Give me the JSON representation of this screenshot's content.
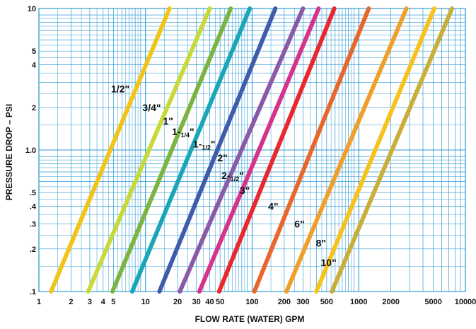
{
  "chart_data": {
    "type": "line",
    "xscale": "log",
    "yscale": "log",
    "xlim": [
      1,
      10000
    ],
    "ylim": [
      0.1,
      10
    ],
    "grid": true,
    "xlabel": "FLOW RATE (WATER) GPM",
    "ylabel": "PRESSURE DROP – PSI",
    "xticks": [
      {
        "value": 1,
        "label": "1"
      },
      {
        "value": 2,
        "label": "2"
      },
      {
        "value": 3,
        "label": "3"
      },
      {
        "value": 4,
        "label": "4"
      },
      {
        "value": 5,
        "label": "5"
      },
      {
        "value": 10,
        "label": "10"
      },
      {
        "value": 20,
        "label": "20"
      },
      {
        "value": 30,
        "label": "30"
      },
      {
        "value": 40,
        "label": "40"
      },
      {
        "value": 50,
        "label": "50"
      },
      {
        "value": 100,
        "label": "100"
      },
      {
        "value": 200,
        "label": "200"
      },
      {
        "value": 300,
        "label": "300"
      },
      {
        "value": 500,
        "label": "500"
      },
      {
        "value": 1000,
        "label": "1000"
      },
      {
        "value": 2000,
        "label": "2000"
      },
      {
        "value": 5000,
        "label": "5000"
      },
      {
        "value": 10000,
        "label": "10000"
      }
    ],
    "yticks": [
      {
        "value": 0.1,
        "label": ".1"
      },
      {
        "value": 0.2,
        "label": ".2"
      },
      {
        "value": 0.3,
        "label": ".3"
      },
      {
        "value": 0.4,
        "label": ".4"
      },
      {
        "value": 0.5,
        "label": ".5"
      },
      {
        "value": 1,
        "label": "1.0"
      },
      {
        "value": 2,
        "label": "2"
      },
      {
        "value": 4,
        "label": "4"
      },
      {
        "value": 5,
        "label": "5"
      },
      {
        "value": 10,
        "label": "10"
      }
    ],
    "series": [
      {
        "name": "1/2\"",
        "main": "1/2\"",
        "sub": "",
        "color": "#f2c418",
        "x": [
          1.3,
          16.8
        ],
        "y": [
          0.1,
          10
        ],
        "label_at": [
          1.25,
          2.7
        ]
      },
      {
        "name": "3/4\"",
        "main": "3/4\"",
        "sub": "",
        "color": "#c8d93a",
        "x": [
          2.9,
          40
        ],
        "y": [
          0.1,
          10
        ],
        "label_at": [
          2.7,
          2.0
        ]
      },
      {
        "name": "1\"",
        "main": "1\"",
        "sub": "",
        "color": "#7bb441",
        "x": [
          4.9,
          63
        ],
        "y": [
          0.1,
          10
        ],
        "label_at": [
          1.25,
          1.6
        ]
      },
      {
        "name": "1-1/4\"",
        "main": "1-",
        "sub": "1/4",
        "color": "#1aa6b7",
        "x": [
          7.5,
          95
        ],
        "y": [
          0.1,
          10
        ],
        "label_at": [
          1.25,
          1.35
        ]
      },
      {
        "name": "1-1/2\"",
        "main": "1-",
        "sub": "1/2",
        "color": "#3f5ba9",
        "x": [
          13.5,
          165
        ],
        "y": [
          0.1,
          10
        ],
        "label_at": [
          1.25,
          1.1
        ]
      },
      {
        "name": "2\"",
        "main": "2\"",
        "sub": "",
        "color": "#8a5aa8",
        "x": [
          21,
          300
        ],
        "y": [
          0.1,
          10
        ],
        "label_at": [
          1.25,
          0.88
        ]
      },
      {
        "name": "2-1/2\"",
        "main": "2-",
        "sub": "1/2",
        "color": "#d6338a",
        "x": [
          32,
          420
        ],
        "y": [
          0.1,
          10
        ],
        "label_at": [
          1.25,
          0.66
        ]
      },
      {
        "name": "3\"",
        "main": "3\"",
        "sub": "",
        "color": "#e8282e",
        "x": [
          49,
          590
        ],
        "y": [
          0.1,
          10
        ],
        "label_at": [
          1.25,
          0.52
        ]
      },
      {
        "name": "4\"",
        "main": "4\"",
        "sub": "",
        "color": "#e8672a",
        "x": [
          105,
          1240
        ],
        "y": [
          0.1,
          10
        ],
        "label_at": [
          1.25,
          0.4
        ]
      },
      {
        "name": "6\"",
        "main": "6\"",
        "sub": "",
        "color": "#f0a02a",
        "x": [
          210,
          2800
        ],
        "y": [
          0.1,
          10
        ],
        "label_at": [
          1.25,
          0.3
        ]
      },
      {
        "name": "8\"",
        "main": "8\"",
        "sub": "",
        "color": "#f7c21c",
        "x": [
          400,
          5100
        ],
        "y": [
          0.1,
          10
        ],
        "label_at": [
          1.25,
          0.22
        ]
      },
      {
        "name": "10\"",
        "main": "10\"",
        "sub": "",
        "color": "#c9ae3a",
        "x": [
          560,
          7500
        ],
        "y": [
          0.1,
          10
        ],
        "label_at": [
          1.25,
          0.16
        ]
      }
    ]
  }
}
